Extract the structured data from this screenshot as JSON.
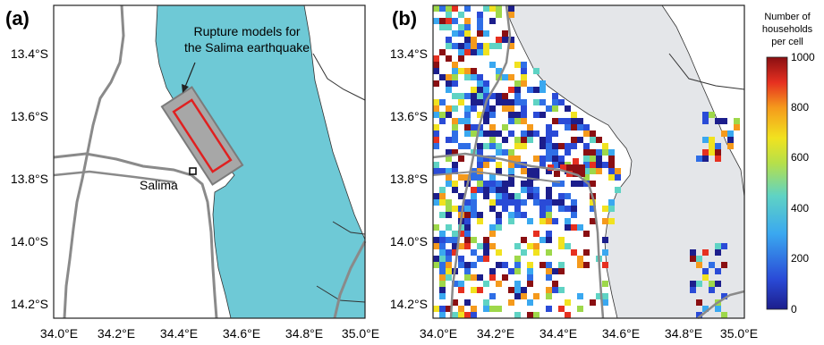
{
  "panels": [
    {
      "label": "(a)",
      "annotation_line1": "Rupture models for",
      "annotation_line2": "the Salima earthquake",
      "town": "Salima"
    },
    {
      "label": "(b)"
    }
  ],
  "lat_ticks": [
    "13.4°S",
    "13.6°S",
    "13.8°S",
    "14.0°S",
    "14.2°S"
  ],
  "lon_ticks": [
    "34.0°E",
    "34.2°E",
    "34.4°E",
    "34.6°E",
    "34.8°E",
    "35.0°E"
  ],
  "colorbar": {
    "title_line1": "Number of",
    "title_line2": "households",
    "title_line3": "per cell",
    "ticks": [
      "1000",
      "800",
      "600",
      "400",
      "200",
      "0"
    ],
    "min": 0,
    "max": 1000
  },
  "colors": {
    "lake": "#6ec9d6",
    "lake_b": "#e4e6e9",
    "road": "#8a8a8a",
    "rupture": "#e02020",
    "rupture_fill": "#9a9a9a"
  }
}
